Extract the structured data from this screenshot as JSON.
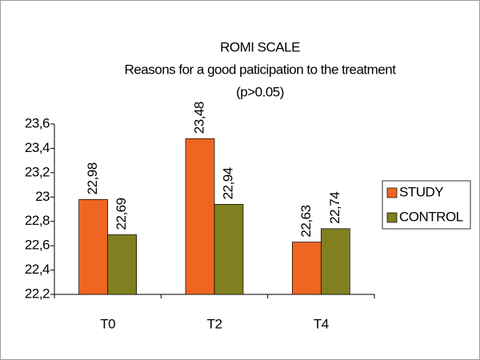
{
  "chart_data": {
    "type": "bar",
    "title": [
      "ROMI SCALE",
      "Reasons for a good paticipation to the treatment",
      "(p>0.05)"
    ],
    "categories": [
      "T0",
      "T2",
      "T4"
    ],
    "series": [
      {
        "name": "STUDY",
        "color": "#ee6622",
        "values": [
          22.98,
          23.48,
          22.63
        ],
        "value_labels": [
          "22,98",
          "23,48",
          "22,63"
        ]
      },
      {
        "name": "CONTROL",
        "color": "#808020",
        "values": [
          22.69,
          22.94,
          22.74
        ],
        "value_labels": [
          "22,69",
          "22,94",
          "22,74"
        ]
      }
    ],
    "ylim": [
      22.2,
      23.6
    ],
    "yticks": [
      {
        "value": 22.2,
        "label": "22,2"
      },
      {
        "value": 22.4,
        "label": "22,4"
      },
      {
        "value": 22.6,
        "label": "22,6"
      },
      {
        "value": 22.8,
        "label": "22,8"
      },
      23,
      {
        "value": 23.2,
        "label": "23,2"
      },
      {
        "value": 23.4,
        "label": "23,4"
      },
      {
        "value": 23.6,
        "label": "23,6"
      }
    ],
    "grid": false,
    "legend": "right"
  }
}
